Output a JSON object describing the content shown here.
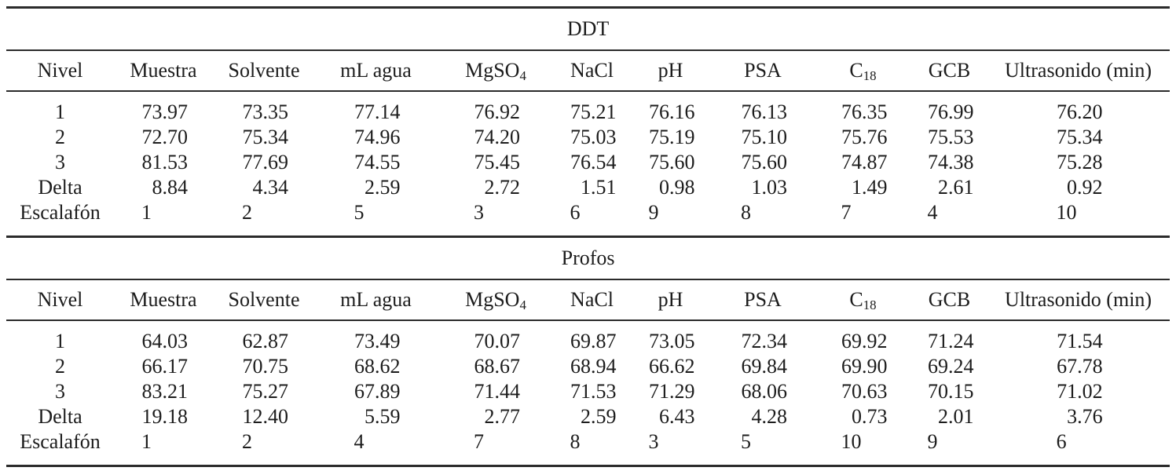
{
  "figure": {
    "background": "#ffffff",
    "text_color": "#1c1c1c",
    "rule_color": "#2b2b2b"
  },
  "tables": [
    {
      "title": "DDT",
      "columns": [
        {
          "label": "Nivel",
          "sub": ""
        },
        {
          "label": "Muestra",
          "sub": ""
        },
        {
          "label": "Solvente",
          "sub": ""
        },
        {
          "label": "mL agua",
          "sub": ""
        },
        {
          "label": "MgSO",
          "sub": "4"
        },
        {
          "label": "NaCl",
          "sub": ""
        },
        {
          "label": "pH",
          "sub": ""
        },
        {
          "label": "PSA",
          "sub": ""
        },
        {
          "label": "C",
          "sub": "18"
        },
        {
          "label": "GCB",
          "sub": ""
        },
        {
          "label": "Ultrasonido (min)",
          "sub": ""
        }
      ],
      "rows": [
        {
          "label": "1",
          "integer": false,
          "values": [
            "73.97",
            "73.35",
            "77.14",
            "76.92",
            "75.21",
            "76.16",
            "76.13",
            "76.35",
            "76.99",
            "76.20"
          ]
        },
        {
          "label": "2",
          "integer": false,
          "values": [
            "72.70",
            "75.34",
            "74.96",
            "74.20",
            "75.03",
            "75.19",
            "75.10",
            "75.76",
            "75.53",
            "75.34"
          ]
        },
        {
          "label": "3",
          "integer": false,
          "values": [
            "81.53",
            "77.69",
            "74.55",
            "75.45",
            "76.54",
            "75.60",
            "75.60",
            "74.87",
            "74.38",
            "75.28"
          ]
        },
        {
          "label": "Delta",
          "integer": false,
          "values": [
            "8.84",
            "4.34",
            "2.59",
            "2.72",
            "1.51",
            "0.98",
            "1.03",
            "1.49",
            "2.61",
            "0.92"
          ]
        },
        {
          "label": "Escalafón",
          "integer": true,
          "values": [
            "1",
            "2",
            "5",
            "3",
            "6",
            "9",
            "8",
            "7",
            "4",
            "10"
          ]
        }
      ]
    },
    {
      "title": "Profos",
      "columns": [
        {
          "label": "Nivel",
          "sub": ""
        },
        {
          "label": "Muestra",
          "sub": ""
        },
        {
          "label": "Solvente",
          "sub": ""
        },
        {
          "label": "mL agua",
          "sub": ""
        },
        {
          "label": "MgSO",
          "sub": "4"
        },
        {
          "label": "NaCl",
          "sub": ""
        },
        {
          "label": "pH",
          "sub": ""
        },
        {
          "label": "PSA",
          "sub": ""
        },
        {
          "label": "C",
          "sub": "18"
        },
        {
          "label": "GCB",
          "sub": ""
        },
        {
          "label": "Ultrasonido (min)",
          "sub": ""
        }
      ],
      "rows": [
        {
          "label": "1",
          "integer": false,
          "values": [
            "64.03",
            "62.87",
            "73.49",
            "70.07",
            "69.87",
            "73.05",
            "72.34",
            "69.92",
            "71.24",
            "71.54"
          ]
        },
        {
          "label": "2",
          "integer": false,
          "values": [
            "66.17",
            "70.75",
            "68.62",
            "68.67",
            "68.94",
            "66.62",
            "69.84",
            "69.90",
            "69.24",
            "67.78"
          ]
        },
        {
          "label": "3",
          "integer": false,
          "values": [
            "83.21",
            "75.27",
            "67.89",
            "71.44",
            "71.53",
            "71.29",
            "68.06",
            "70.63",
            "70.15",
            "71.02"
          ]
        },
        {
          "label": "Delta",
          "integer": false,
          "values": [
            "19.18",
            "12.40",
            "5.59",
            "2.77",
            "2.59",
            "6.43",
            "4.28",
            "0.73",
            "2.01",
            "3.76"
          ]
        },
        {
          "label": "Escalafón",
          "integer": true,
          "values": [
            "1",
            "2",
            "4",
            "7",
            "8",
            "3",
            "5",
            "10",
            "9",
            "6"
          ]
        }
      ]
    }
  ]
}
